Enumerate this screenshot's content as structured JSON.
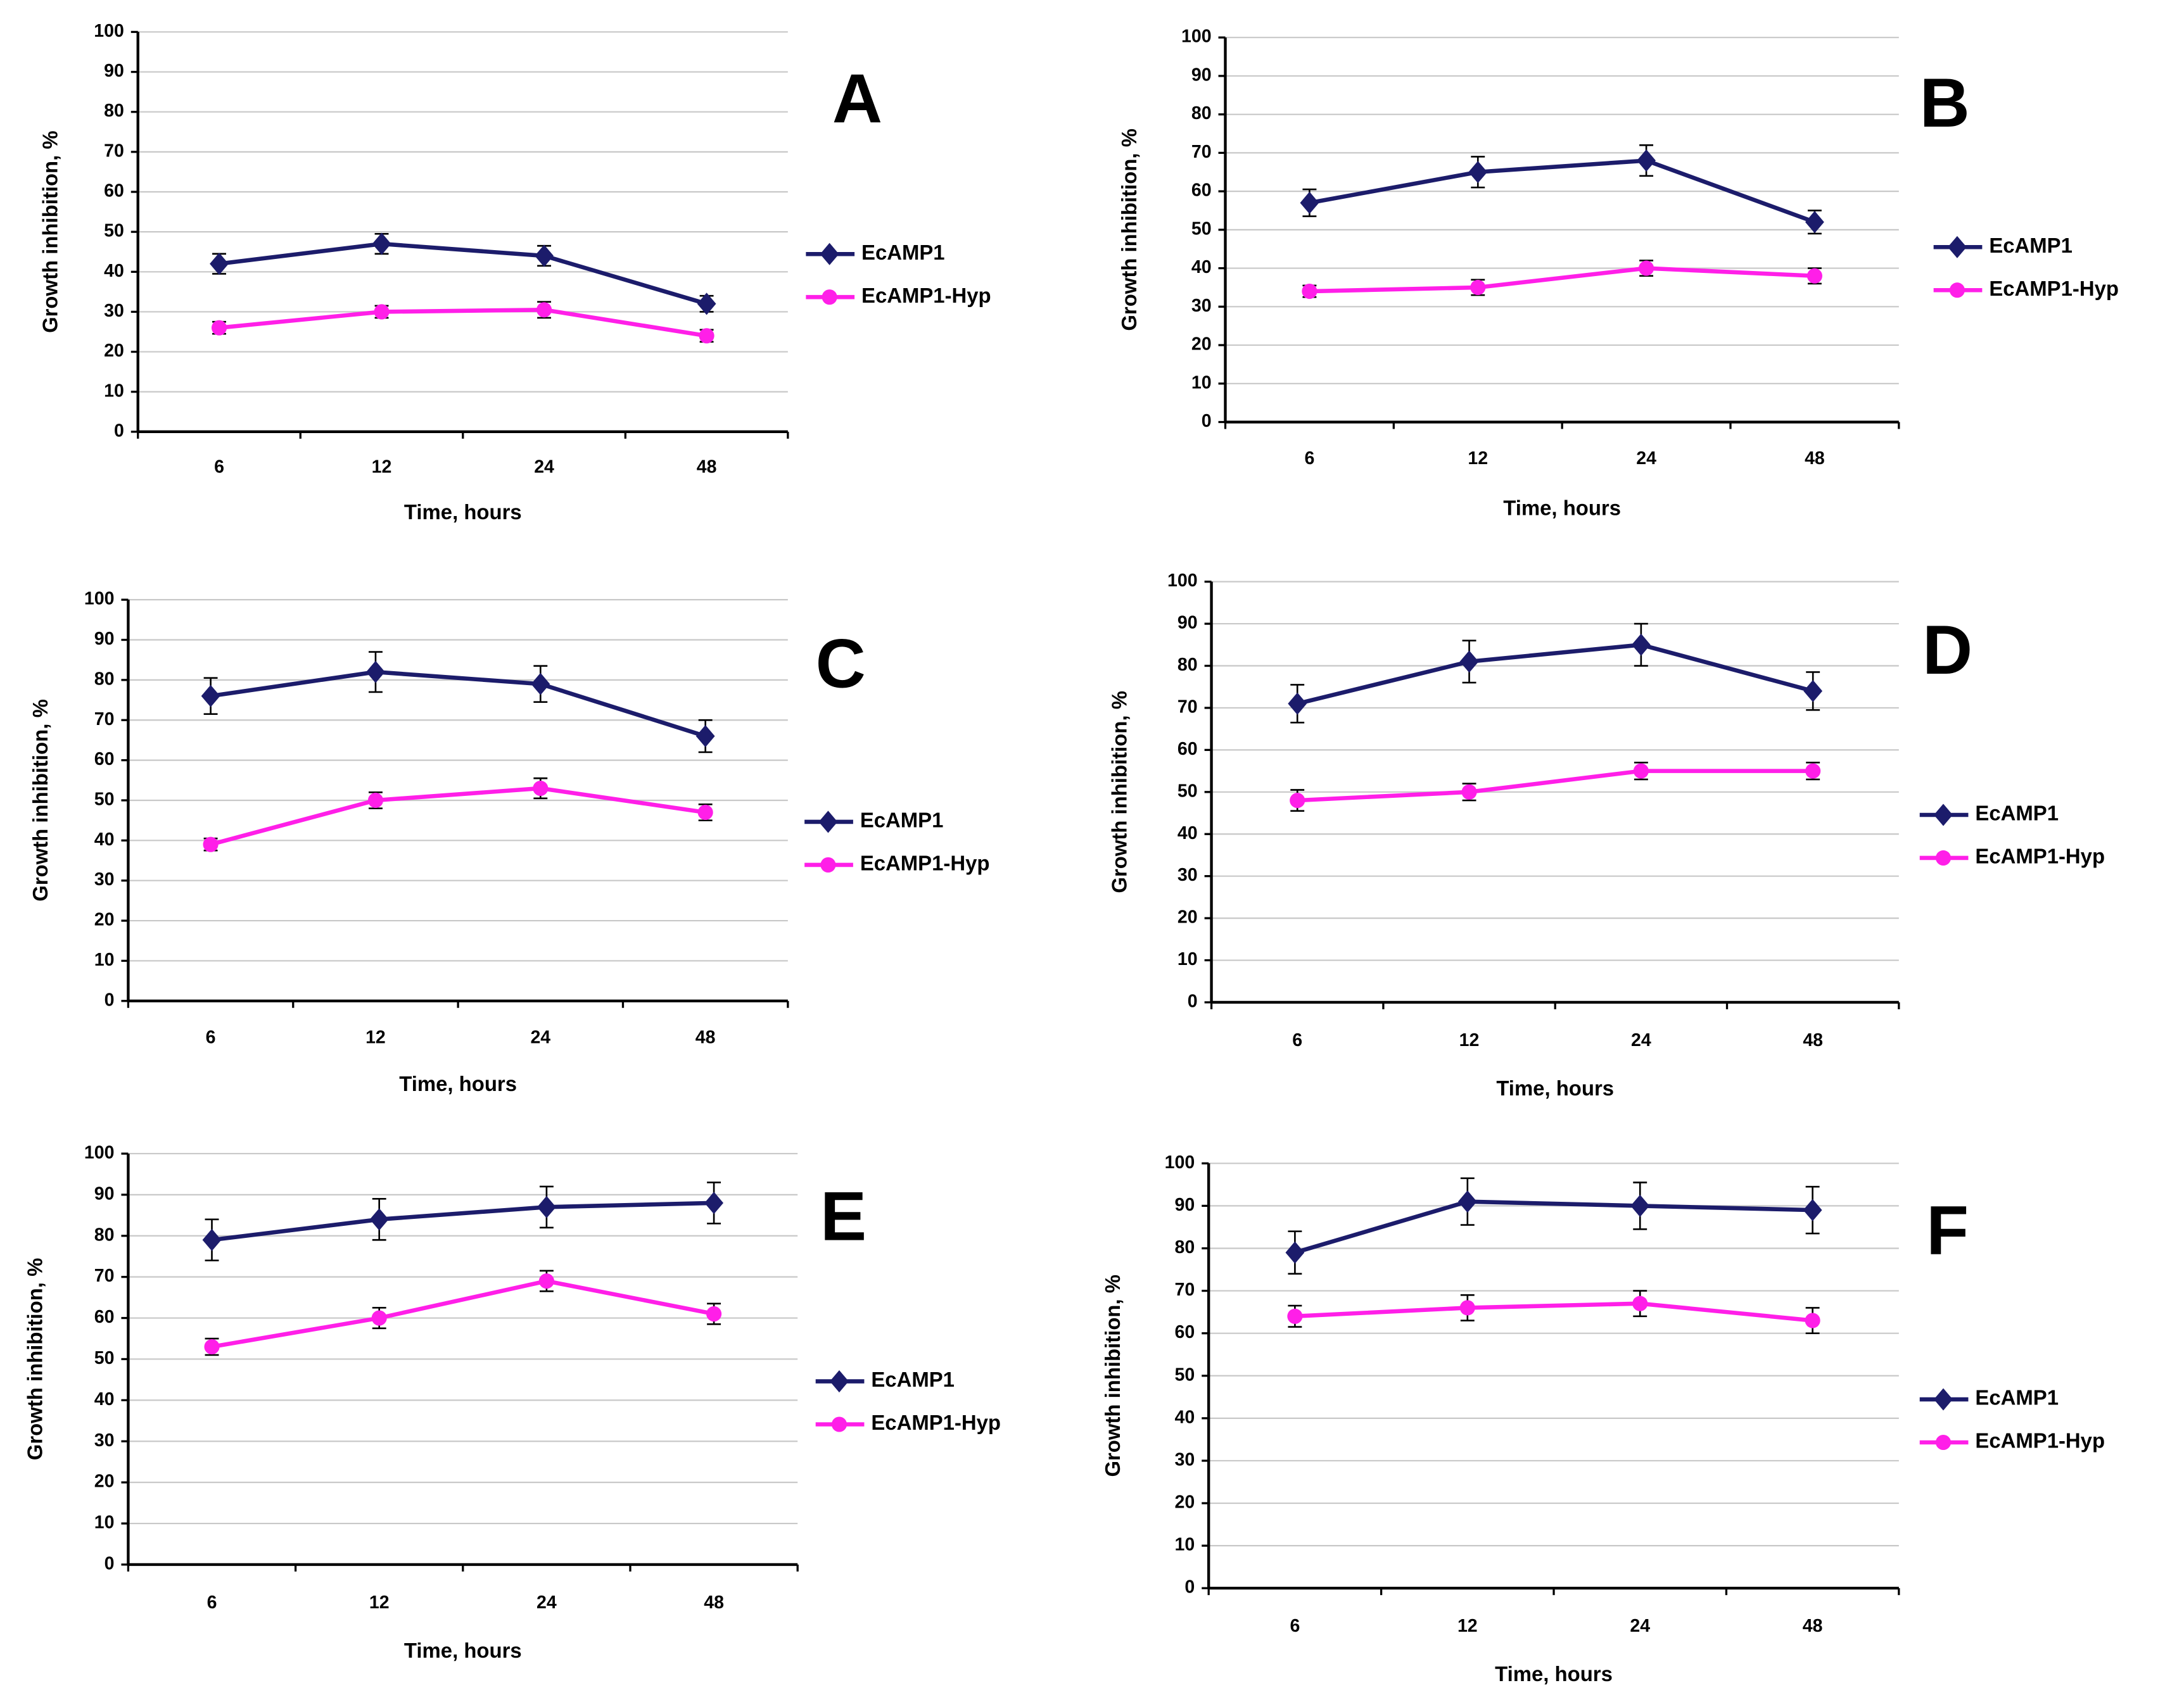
{
  "chart_data": [
    {
      "type": "line",
      "title": "A",
      "xlabel": "Time, hours",
      "ylabel": "Growth inhibition, %",
      "categories": [
        "6",
        "12",
        "24",
        "48"
      ],
      "ylim": [
        0,
        100
      ],
      "yticks": [
        0,
        10,
        20,
        30,
        40,
        50,
        60,
        70,
        80,
        90,
        100
      ],
      "grid": true,
      "series": [
        {
          "name": "EcAMP1",
          "color": "#1c1c6b",
          "marker": "diamond",
          "values": [
            42,
            47,
            44,
            32
          ],
          "errors": [
            2.5,
            2.5,
            2.5,
            2
          ]
        },
        {
          "name": "EcAMP1-Hyp",
          "color": "#ff1fe8",
          "marker": "circle",
          "values": [
            26,
            30,
            30.5,
            24
          ],
          "errors": [
            1.5,
            1.5,
            2,
            1.5
          ]
        }
      ]
    },
    {
      "type": "line",
      "title": "B",
      "xlabel": "Time, hours",
      "ylabel": "Growth inhibition, %",
      "categories": [
        "6",
        "12",
        "24",
        "48"
      ],
      "ylim": [
        0,
        100
      ],
      "yticks": [
        0,
        10,
        20,
        30,
        40,
        50,
        60,
        70,
        80,
        90,
        100
      ],
      "grid": true,
      "series": [
        {
          "name": "EcAMP1",
          "color": "#1c1c6b",
          "marker": "diamond",
          "values": [
            57,
            65,
            68,
            52
          ],
          "errors": [
            3.5,
            4,
            4,
            3
          ]
        },
        {
          "name": "EcAMP1-Hyp",
          "color": "#ff1fe8",
          "marker": "circle",
          "values": [
            34,
            35,
            40,
            38
          ],
          "errors": [
            1.5,
            2,
            2,
            2
          ]
        }
      ]
    },
    {
      "type": "line",
      "title": "C",
      "xlabel": "Time, hours",
      "ylabel": "Growth inhibition, %",
      "categories": [
        "6",
        "12",
        "24",
        "48"
      ],
      "ylim": [
        0,
        100
      ],
      "yticks": [
        0,
        10,
        20,
        30,
        40,
        50,
        60,
        70,
        80,
        90,
        100
      ],
      "grid": true,
      "series": [
        {
          "name": "EcAMP1",
          "color": "#1c1c6b",
          "marker": "diamond",
          "values": [
            76,
            82,
            79,
            66
          ],
          "errors": [
            4.5,
            5,
            4.5,
            4
          ]
        },
        {
          "name": "EcAMP1-Hyp",
          "color": "#ff1fe8",
          "marker": "circle",
          "values": [
            39,
            50,
            53,
            47
          ],
          "errors": [
            1.5,
            2,
            2.5,
            2
          ]
        }
      ]
    },
    {
      "type": "line",
      "title": "D",
      "xlabel": "Time, hours",
      "ylabel": "Growth inhibition, %",
      "categories": [
        "6",
        "12",
        "24",
        "48"
      ],
      "ylim": [
        0,
        100
      ],
      "yticks": [
        0,
        10,
        20,
        30,
        40,
        50,
        60,
        70,
        80,
        90,
        100
      ],
      "grid": true,
      "series": [
        {
          "name": "EcAMP1",
          "color": "#1c1c6b",
          "marker": "diamond",
          "values": [
            71,
            81,
            85,
            74
          ],
          "errors": [
            4.5,
            5,
            5,
            4.5
          ]
        },
        {
          "name": "EcAMP1-Hyp",
          "color": "#ff1fe8",
          "marker": "circle",
          "values": [
            48,
            50,
            55,
            55
          ],
          "errors": [
            2.5,
            2,
            2,
            2
          ]
        }
      ]
    },
    {
      "type": "line",
      "title": "E",
      "xlabel": "Time, hours",
      "ylabel": "Growth inhibition, %",
      "categories": [
        "6",
        "12",
        "24",
        "48"
      ],
      "ylim": [
        0,
        100
      ],
      "yticks": [
        0,
        10,
        20,
        30,
        40,
        50,
        60,
        70,
        80,
        90,
        100
      ],
      "grid": true,
      "series": [
        {
          "name": "EcAMP1",
          "color": "#1c1c6b",
          "marker": "diamond",
          "values": [
            79,
            84,
            87,
            88
          ],
          "errors": [
            5,
            5,
            5,
            5
          ]
        },
        {
          "name": "EcAMP1-Hyp",
          "color": "#ff1fe8",
          "marker": "circle",
          "values": [
            53,
            60,
            69,
            61
          ],
          "errors": [
            2,
            2.5,
            2.5,
            2.5
          ]
        }
      ]
    },
    {
      "type": "line",
      "title": "F",
      "xlabel": "Time, hours",
      "ylabel": "Growth inhibition, %",
      "categories": [
        "6",
        "12",
        "24",
        "48"
      ],
      "ylim": [
        0,
        100
      ],
      "yticks": [
        0,
        10,
        20,
        30,
        40,
        50,
        60,
        70,
        80,
        90,
        100
      ],
      "grid": true,
      "series": [
        {
          "name": "EcAMP1",
          "color": "#1c1c6b",
          "marker": "diamond",
          "values": [
            79,
            91,
            90,
            89
          ],
          "errors": [
            5,
            5.5,
            5.5,
            5.5
          ]
        },
        {
          "name": "EcAMP1-Hyp",
          "color": "#ff1fe8",
          "marker": "circle",
          "values": [
            64,
            66,
            67,
            63
          ],
          "errors": [
            2.5,
            3,
            3,
            3
          ]
        }
      ]
    }
  ]
}
